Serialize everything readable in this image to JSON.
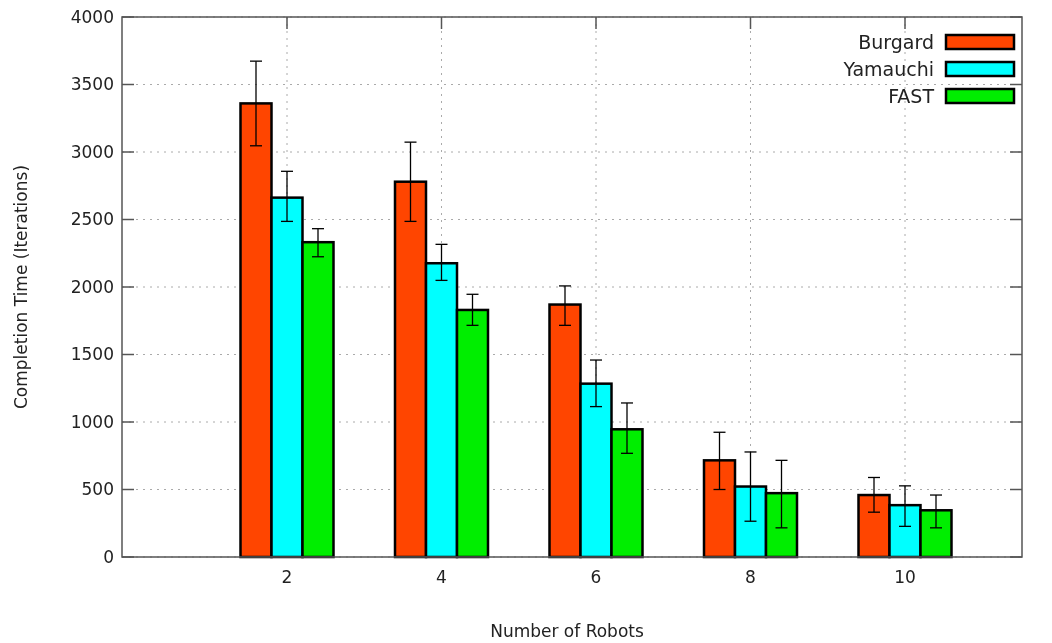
{
  "chart_data": {
    "type": "bar",
    "xlabel": "Number of Robots",
    "ylabel": "Completion Time (Iterations)",
    "categories": [
      "2",
      "4",
      "6",
      "8",
      "10"
    ],
    "series": [
      {
        "name": "Burgard",
        "color": "#ff4500",
        "values": [
          3360,
          2780,
          1870,
          716,
          459
        ],
        "errors": [
          [
            3046,
            3673
          ],
          [
            2486,
            3073
          ],
          [
            1716,
            2008
          ],
          [
            500,
            924
          ],
          [
            332,
            589
          ]
        ]
      },
      {
        "name": "Yamauchi",
        "color": "#00ffff",
        "values": [
          2662,
          2176,
          1284,
          522,
          384
        ],
        "errors": [
          [
            2486,
            2857
          ],
          [
            2049,
            2316
          ],
          [
            1114,
            1459
          ],
          [
            265,
            778
          ],
          [
            227,
            527
          ]
        ]
      },
      {
        "name": "FAST",
        "color": "#00ee00",
        "values": [
          2332,
          1830,
          946,
          473,
          346
        ],
        "errors": [
          [
            2224,
            2432
          ],
          [
            1716,
            1946
          ],
          [
            768,
            1141
          ],
          [
            216,
            716
          ],
          [
            216,
            459
          ]
        ]
      }
    ],
    "ylim": [
      0,
      4000
    ],
    "yticks": [
      0,
      500,
      1000,
      1500,
      2000,
      2500,
      3000,
      3500,
      4000
    ],
    "grid": true,
    "legend": "top right"
  }
}
